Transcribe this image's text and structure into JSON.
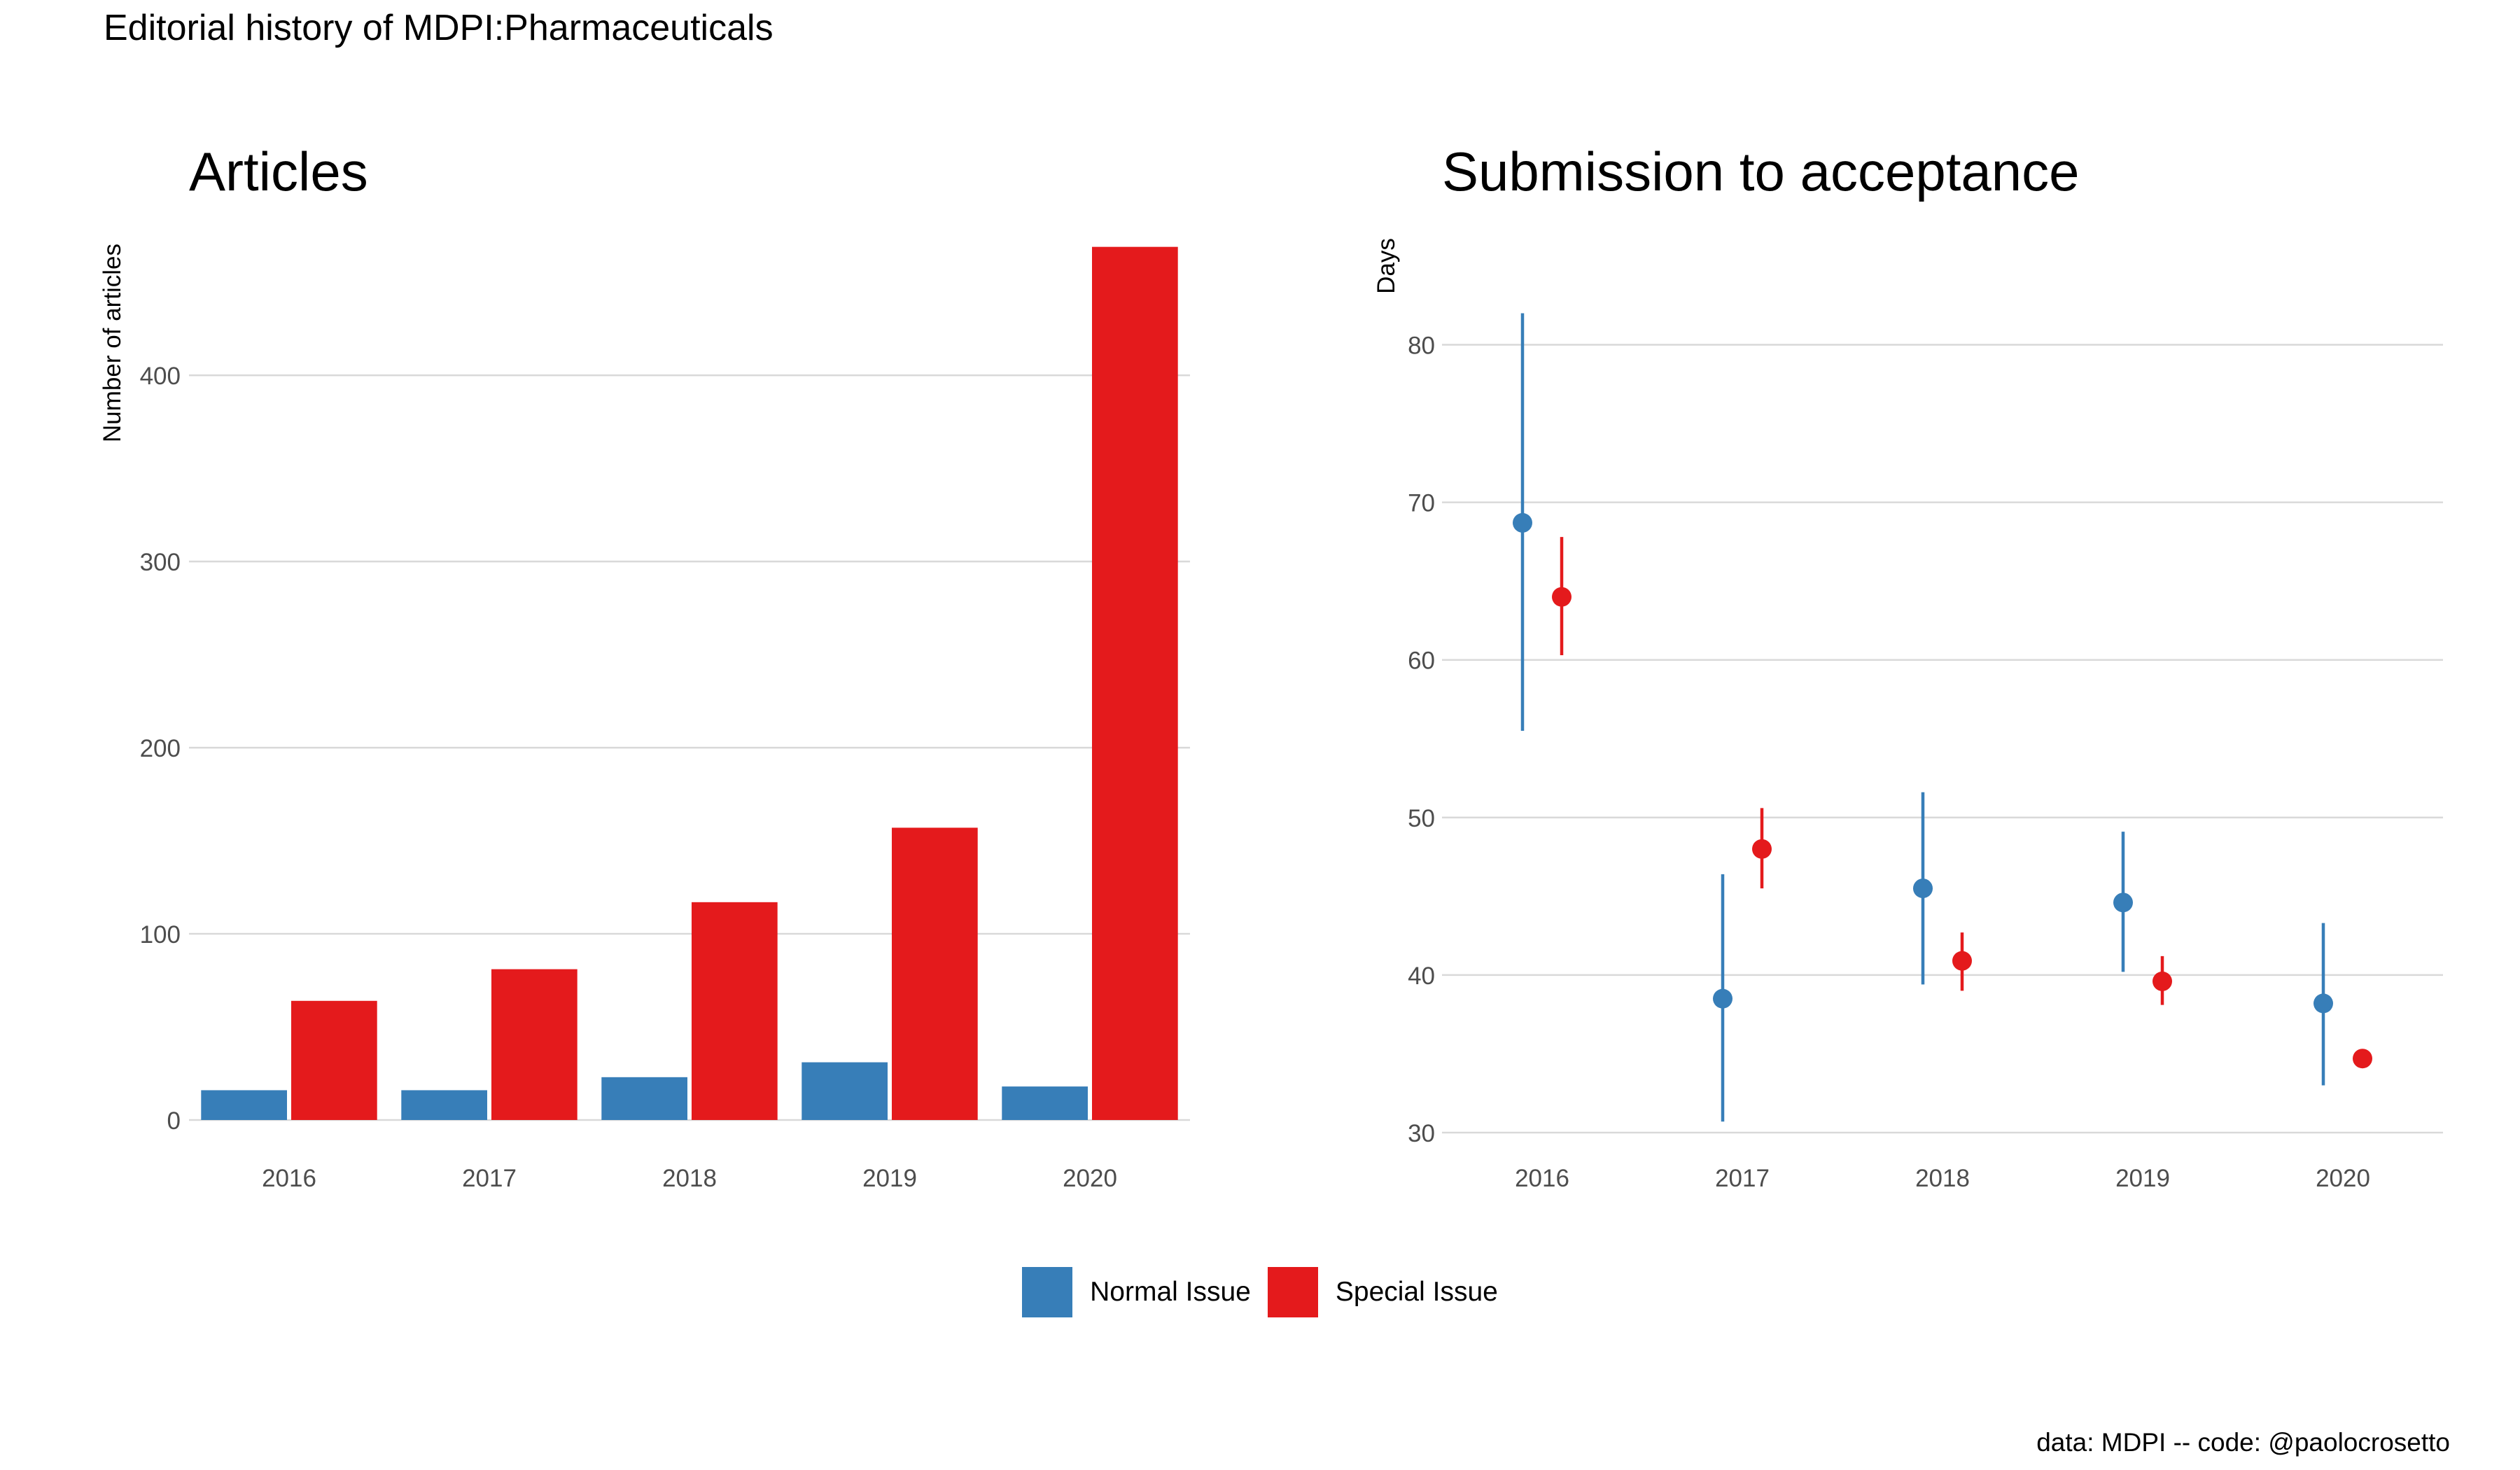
{
  "title": "Editorial history of MDPI:Pharmaceuticals",
  "caption": "data: MDPI -- code: @paolocrosetto",
  "legend": [
    {
      "label": "Normal Issue",
      "color": "#377EB8"
    },
    {
      "label": "Special Issue",
      "color": "#E41A1C"
    }
  ],
  "chart_data": [
    {
      "type": "bar",
      "title": "Articles",
      "xlabel": "",
      "ylabel": "Number of articles",
      "categories": [
        "2016",
        "2017",
        "2018",
        "2019",
        "2020"
      ],
      "ylim": [
        0,
        470
      ],
      "yticks": [
        0,
        100,
        200,
        300,
        400
      ],
      "grid": true,
      "series": [
        {
          "name": "Normal Issue",
          "color": "#377EB8",
          "values": [
            16,
            16,
            23,
            31,
            18
          ]
        },
        {
          "name": "Special Issue",
          "color": "#E41A1C",
          "values": [
            64,
            81,
            117,
            157,
            469
          ]
        }
      ]
    },
    {
      "type": "scatter",
      "title": "Submission to acceptance",
      "xlabel": "",
      "ylabel": "Days",
      "categories": [
        "2016",
        "2017",
        "2018",
        "2019",
        "2020"
      ],
      "ylim": [
        30,
        82
      ],
      "yticks": [
        30,
        40,
        50,
        60,
        70,
        80
      ],
      "grid": true,
      "series": [
        {
          "name": "Normal Issue",
          "color": "#377EB8",
          "points": [
            {
              "x": "2016",
              "y": 68.7,
              "low": 55.5,
              "high": 82.0
            },
            {
              "x": "2017",
              "y": 38.5,
              "low": 30.7,
              "high": 46.4
            },
            {
              "x": "2018",
              "y": 45.5,
              "low": 39.4,
              "high": 51.6
            },
            {
              "x": "2019",
              "y": 44.6,
              "low": 40.2,
              "high": 49.1
            },
            {
              "x": "2020",
              "y": 38.2,
              "low": 33.0,
              "high": 43.3
            }
          ]
        },
        {
          "name": "Special Issue",
          "color": "#E41A1C",
          "points": [
            {
              "x": "2016",
              "y": 64.0,
              "low": 60.3,
              "high": 67.8
            },
            {
              "x": "2017",
              "y": 48.0,
              "low": 45.5,
              "high": 50.6
            },
            {
              "x": "2018",
              "y": 40.9,
              "low": 39.0,
              "high": 42.7
            },
            {
              "x": "2019",
              "y": 39.6,
              "low": 38.1,
              "high": 41.2
            },
            {
              "x": "2020",
              "y": 34.7,
              "low": 34.2,
              "high": 35.3
            }
          ]
        }
      ]
    }
  ]
}
